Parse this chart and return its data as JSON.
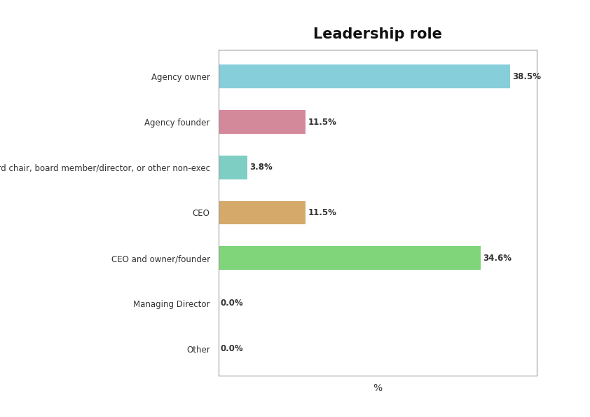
{
  "title": "Leadership role",
  "categories": [
    "Agency owner",
    "Agency founder",
    "Board chair, board member/director, or other non-exec",
    "CEO",
    "CEO and owner/founder",
    "Managing Director",
    "Other"
  ],
  "values": [
    38.5,
    11.5,
    3.8,
    11.5,
    34.6,
    0.0,
    0.0
  ],
  "bar_colors": [
    "#87CEDB",
    "#D4899A",
    "#7ECEC4",
    "#D4A96A",
    "#80D47A",
    "#cccccc",
    "#cccccc"
  ],
  "value_labels": [
    "38.5%",
    "11.5%",
    "3.8%",
    "11.5%",
    "34.6%",
    "0.0%",
    "0.0%"
  ],
  "xlabel": "%",
  "xlim": [
    0,
    42
  ],
  "bar_height": 0.52,
  "title_fontsize": 15,
  "label_fontsize": 8.5,
  "value_fontsize": 8.5,
  "background_color": "#ffffff",
  "plot_bg_color": "#ffffff",
  "spine_color": "#999999"
}
